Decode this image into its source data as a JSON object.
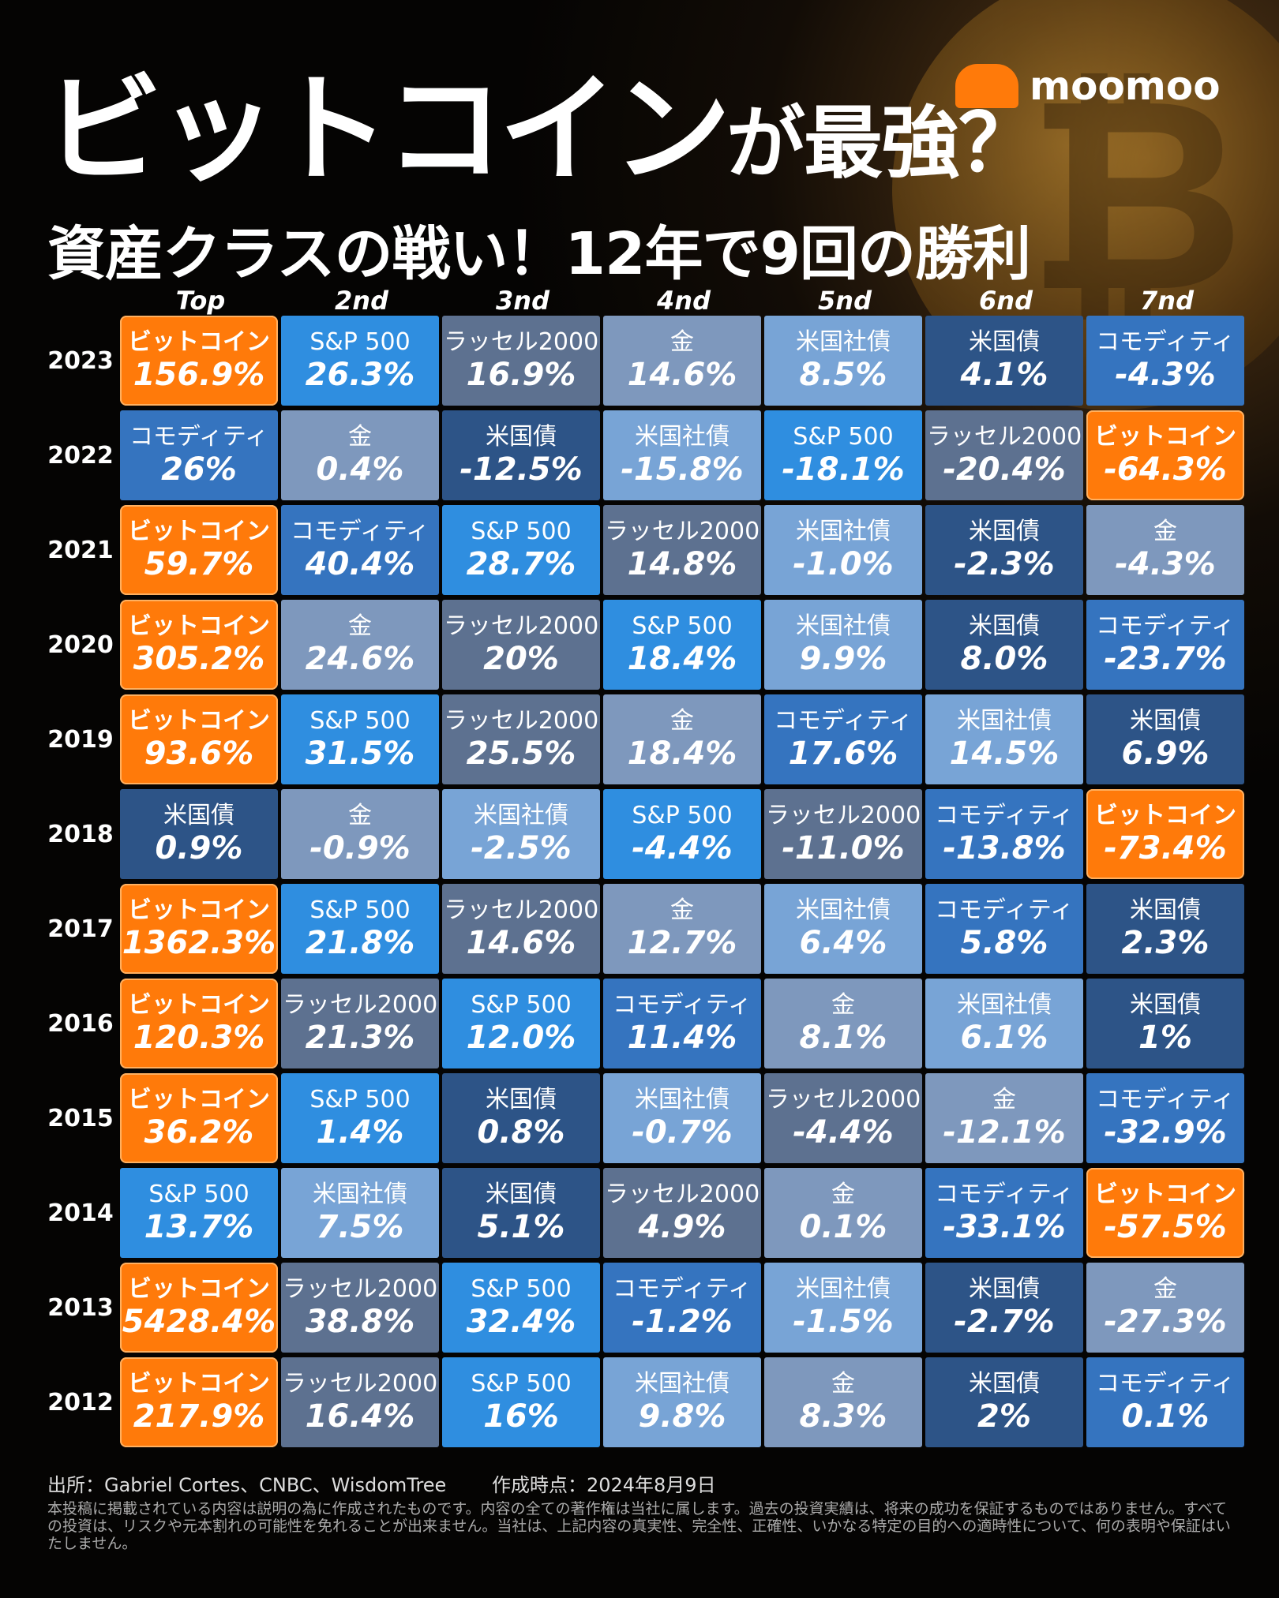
{
  "brand": "moomoo",
  "title": {
    "main": "ビットコイン",
    "suffix": "が最強？"
  },
  "subtitle": "資産クラスの戦い！12年で9回の勝利",
  "rank_headers": [
    "Top",
    "2nd",
    "3nd",
    "4nd",
    "5nd",
    "6nd",
    "7nd"
  ],
  "colors": {
    "ビットコイン": "#ff7a0a",
    "S&P 500": "#2f8ee0",
    "ラッセル2000": "#5d7190",
    "金": "#7e98bd",
    "米国社債": "#78a4d6",
    "米国債": "#2d5487",
    "コモディティ": "#3574bf"
  },
  "rows": [
    {
      "year": "2023",
      "cells": [
        [
          "ビットコイン",
          "156.9%"
        ],
        [
          "S&P 500",
          "26.3%"
        ],
        [
          "ラッセル2000",
          "16.9%"
        ],
        [
          "金",
          "14.6%"
        ],
        [
          "米国社債",
          "8.5%"
        ],
        [
          "米国債",
          "4.1%"
        ],
        [
          "コモディティ",
          "-4.3%"
        ]
      ]
    },
    {
      "year": "2022",
      "cells": [
        [
          "コモディティ",
          "26%"
        ],
        [
          "金",
          "0.4%"
        ],
        [
          "米国債",
          "-12.5%"
        ],
        [
          "米国社債",
          "-15.8%"
        ],
        [
          "S&P 500",
          "-18.1%"
        ],
        [
          "ラッセル2000",
          "-20.4%"
        ],
        [
          "ビットコイン",
          "-64.3%"
        ]
      ]
    },
    {
      "year": "2021",
      "cells": [
        [
          "ビットコイン",
          "59.7%"
        ],
        [
          "コモディティ",
          "40.4%"
        ],
        [
          "S&P 500",
          "28.7%"
        ],
        [
          "ラッセル2000",
          "14.8%"
        ],
        [
          "米国社債",
          "-1.0%"
        ],
        [
          "米国債",
          "-2.3%"
        ],
        [
          "金",
          "-4.3%"
        ]
      ]
    },
    {
      "year": "2020",
      "cells": [
        [
          "ビットコイン",
          "305.2%"
        ],
        [
          "金",
          "24.6%"
        ],
        [
          "ラッセル2000",
          "20%"
        ],
        [
          "S&P 500",
          "18.4%"
        ],
        [
          "米国社債",
          "9.9%"
        ],
        [
          "米国債",
          "8.0%"
        ],
        [
          "コモディティ",
          "-23.7%"
        ]
      ]
    },
    {
      "year": "2019",
      "cells": [
        [
          "ビットコイン",
          "93.6%"
        ],
        [
          "S&P 500",
          "31.5%"
        ],
        [
          "ラッセル2000",
          "25.5%"
        ],
        [
          "金",
          "18.4%"
        ],
        [
          "コモディティ",
          "17.6%"
        ],
        [
          "米国社債",
          "14.5%"
        ],
        [
          "米国債",
          "6.9%"
        ]
      ]
    },
    {
      "year": "2018",
      "cells": [
        [
          "米国債",
          "0.9%"
        ],
        [
          "金",
          "-0.9%"
        ],
        [
          "米国社債",
          "-2.5%"
        ],
        [
          "S&P 500",
          "-4.4%"
        ],
        [
          "ラッセル2000",
          "-11.0%"
        ],
        [
          "コモディティ",
          "-13.8%"
        ],
        [
          "ビットコイン",
          "-73.4%"
        ]
      ]
    },
    {
      "year": "2017",
      "cells": [
        [
          "ビットコイン",
          "1362.3%"
        ],
        [
          "S&P 500",
          "21.8%"
        ],
        [
          "ラッセル2000",
          "14.6%"
        ],
        [
          "金",
          "12.7%"
        ],
        [
          "米国社債",
          "6.4%"
        ],
        [
          "コモディティ",
          "5.8%"
        ],
        [
          "米国債",
          "2.3%"
        ]
      ]
    },
    {
      "year": "2016",
      "cells": [
        [
          "ビットコイン",
          "120.3%"
        ],
        [
          "ラッセル2000",
          "21.3%"
        ],
        [
          "S&P 500",
          "12.0%"
        ],
        [
          "コモディティ",
          "11.4%"
        ],
        [
          "金",
          "8.1%"
        ],
        [
          "米国社債",
          "6.1%"
        ],
        [
          "米国債",
          "1%"
        ]
      ]
    },
    {
      "year": "2015",
      "cells": [
        [
          "ビットコイン",
          "36.2%"
        ],
        [
          "S&P 500",
          "1.4%"
        ],
        [
          "米国債",
          "0.8%"
        ],
        [
          "米国社債",
          "-0.7%"
        ],
        [
          "ラッセル2000",
          "-4.4%"
        ],
        [
          "金",
          "-12.1%"
        ],
        [
          "コモディティ",
          "-32.9%"
        ]
      ]
    },
    {
      "year": "2014",
      "cells": [
        [
          "S&P 500",
          "13.7%"
        ],
        [
          "米国社債",
          "7.5%"
        ],
        [
          "米国債",
          "5.1%"
        ],
        [
          "ラッセル2000",
          "4.9%"
        ],
        [
          "金",
          "0.1%"
        ],
        [
          "コモディティ",
          "-33.1%"
        ],
        [
          "ビットコイン",
          "-57.5%"
        ]
      ]
    },
    {
      "year": "2013",
      "cells": [
        [
          "ビットコイン",
          "5428.4%"
        ],
        [
          "ラッセル2000",
          "38.8%"
        ],
        [
          "S&P 500",
          "32.4%"
        ],
        [
          "コモディティ",
          "-1.2%"
        ],
        [
          "米国社債",
          "-1.5%"
        ],
        [
          "米国債",
          "-2.7%"
        ],
        [
          "金",
          "-27.3%"
        ]
      ]
    },
    {
      "year": "2012",
      "cells": [
        [
          "ビットコイン",
          "217.9%"
        ],
        [
          "ラッセル2000",
          "16.4%"
        ],
        [
          "S&P 500",
          "16%"
        ],
        [
          "米国社債",
          "9.8%"
        ],
        [
          "金",
          "8.3%"
        ],
        [
          "米国債",
          "2%"
        ],
        [
          "コモディティ",
          "0.1%"
        ]
      ]
    }
  ],
  "footer": {
    "source": "出所：Gabriel Cortes、CNBC、WisdomTree",
    "date": "作成時点：2024年8月9日",
    "disclaimer": "本投稿に掲載されている内容は説明の為に作成されたものです。内容の全ての著作権は当社に属します。過去の投資実績は、将来の成功を保証するものではありません。すべての投資は、リスクや元本割れの可能性を免れることが出来ません。当社は、上記内容の真実性、完全性、正確性、いかなる特定の目的への適時性について、何の表明や保証はいたしません。"
  }
}
